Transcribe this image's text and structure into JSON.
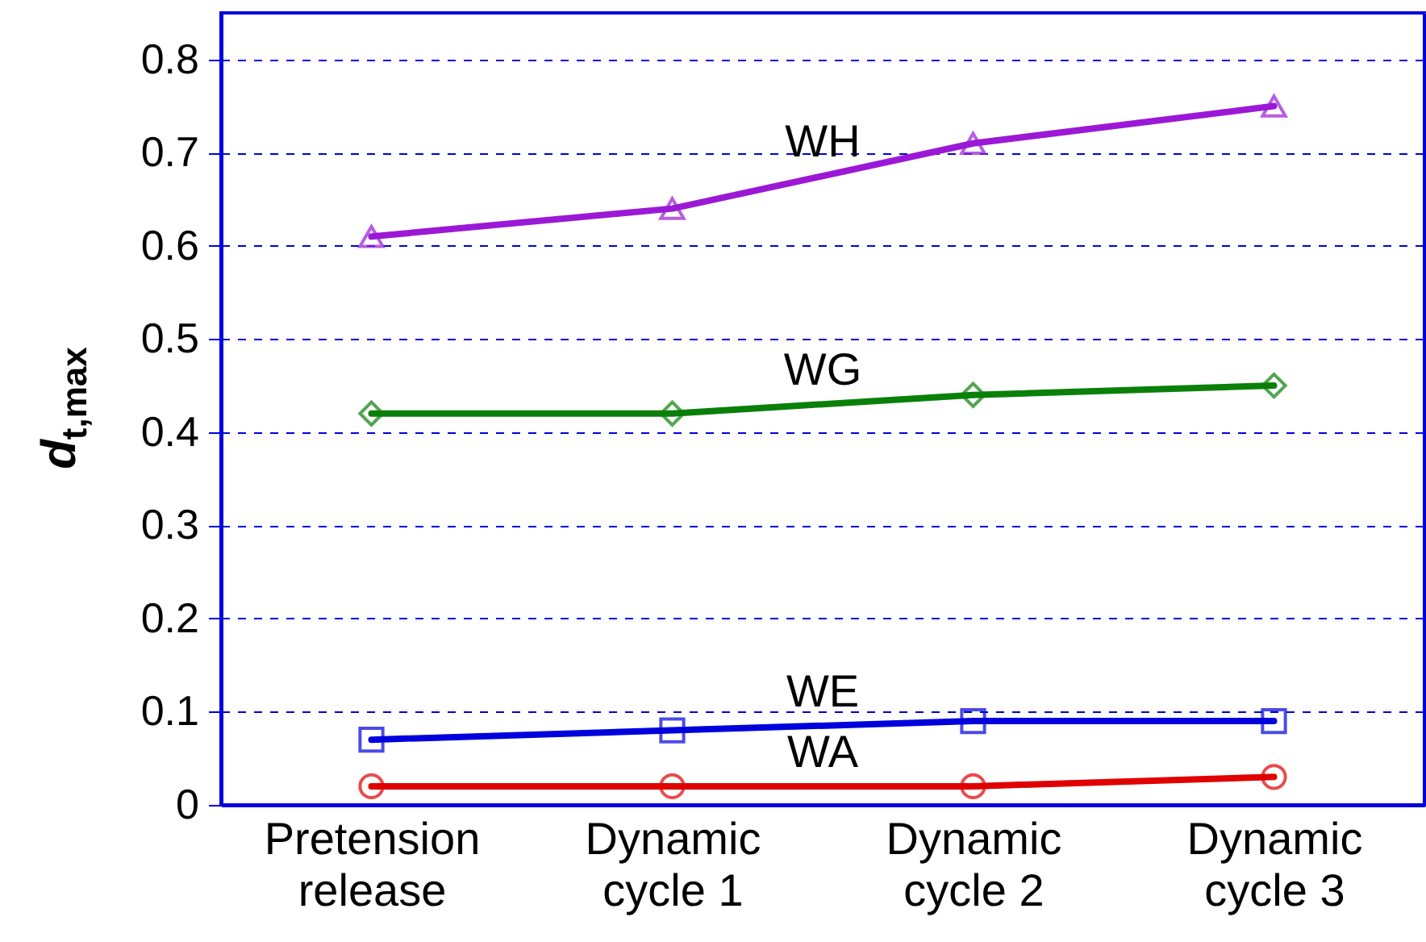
{
  "chart_data": {
    "type": "line",
    "ylabel": "d$_{t,max}$",
    "categories": [
      "Pretension\nrelease",
      "Dynamic\ncycle 1",
      "Dynamic\ncycle 2",
      "Dynamic\ncycle 3"
    ],
    "ylim": [
      0,
      0.85
    ],
    "yticks": [
      {
        "value": 0,
        "label": "0"
      },
      0.1,
      0.2,
      0.3,
      0.4,
      0.5,
      0.6,
      0.7,
      0.8
    ],
    "grid": "y",
    "line_style": "solid",
    "series": [
      {
        "name": "WH",
        "color": "#9b19d6",
        "marker": "triangle",
        "values": [
          0.61,
          0.64,
          0.71,
          0.75
        ]
      },
      {
        "name": "WG",
        "color": "#0a800a",
        "marker": "diamond",
        "values": [
          0.42,
          0.42,
          0.44,
          0.45
        ]
      },
      {
        "name": "WE",
        "color": "#0000dd",
        "marker": "square",
        "values": [
          0.07,
          0.08,
          0.09,
          0.09
        ]
      },
      {
        "name": "WA",
        "color": "#e00000",
        "marker": "circle",
        "values": [
          0.02,
          0.02,
          0.02,
          0.03
        ]
      }
    ]
  }
}
